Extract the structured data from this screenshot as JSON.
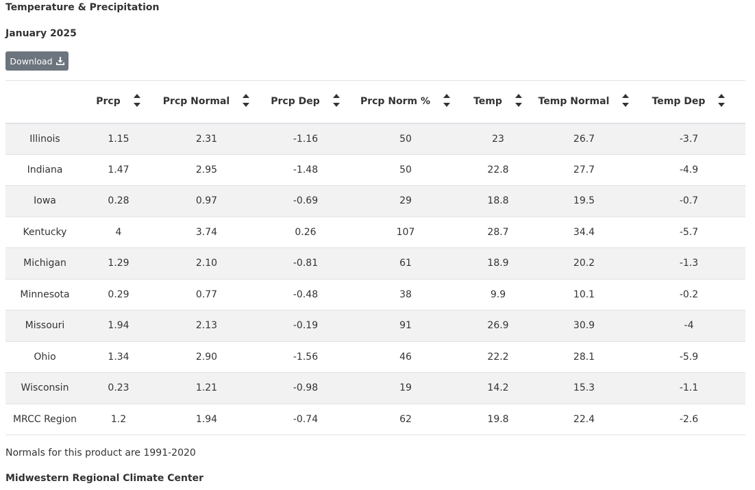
{
  "page": {
    "title": "Temperature & Precipitation",
    "subtitle": "January 2025",
    "download_label": "Download",
    "footnote": "Normals for this product are 1991-2020",
    "organization": "Midwestern Regional Climate Center"
  },
  "table": {
    "columns": [
      "",
      "Prcp",
      "Prcp Normal",
      "Prcp Dep",
      "Prcp Norm %",
      "Temp",
      "Temp Normal",
      "Temp Dep"
    ],
    "rows": [
      [
        "Illinois",
        "1.15",
        "2.31",
        "-1.16",
        "50",
        "23",
        "26.7",
        "-3.7"
      ],
      [
        "Indiana",
        "1.47",
        "2.95",
        "-1.48",
        "50",
        "22.8",
        "27.7",
        "-4.9"
      ],
      [
        "Iowa",
        "0.28",
        "0.97",
        "-0.69",
        "29",
        "18.8",
        "19.5",
        "-0.7"
      ],
      [
        "Kentucky",
        "4",
        "3.74",
        "0.26",
        "107",
        "28.7",
        "34.4",
        "-5.7"
      ],
      [
        "Michigan",
        "1.29",
        "2.10",
        "-0.81",
        "61",
        "18.9",
        "20.2",
        "-1.3"
      ],
      [
        "Minnesota",
        "0.29",
        "0.77",
        "-0.48",
        "38",
        "9.9",
        "10.1",
        "-0.2"
      ],
      [
        "Missouri",
        "1.94",
        "2.13",
        "-0.19",
        "91",
        "26.9",
        "30.9",
        "-4"
      ],
      [
        "Ohio",
        "1.34",
        "2.90",
        "-1.56",
        "46",
        "22.2",
        "28.1",
        "-5.9"
      ],
      [
        "Wisconsin",
        "0.23",
        "1.21",
        "-0.98",
        "19",
        "14.2",
        "15.3",
        "-1.1"
      ],
      [
        "MRCC Region",
        "1.2",
        "1.94",
        "-0.74",
        "62",
        "19.8",
        "22.4",
        "-2.6"
      ]
    ]
  },
  "colors": {
    "button_bg": "#6c757d",
    "stripe": "#f2f2f2",
    "border": "#dee2e6",
    "text": "#333333"
  },
  "icons": {
    "download": "download-icon",
    "sort": "sort-icon"
  }
}
